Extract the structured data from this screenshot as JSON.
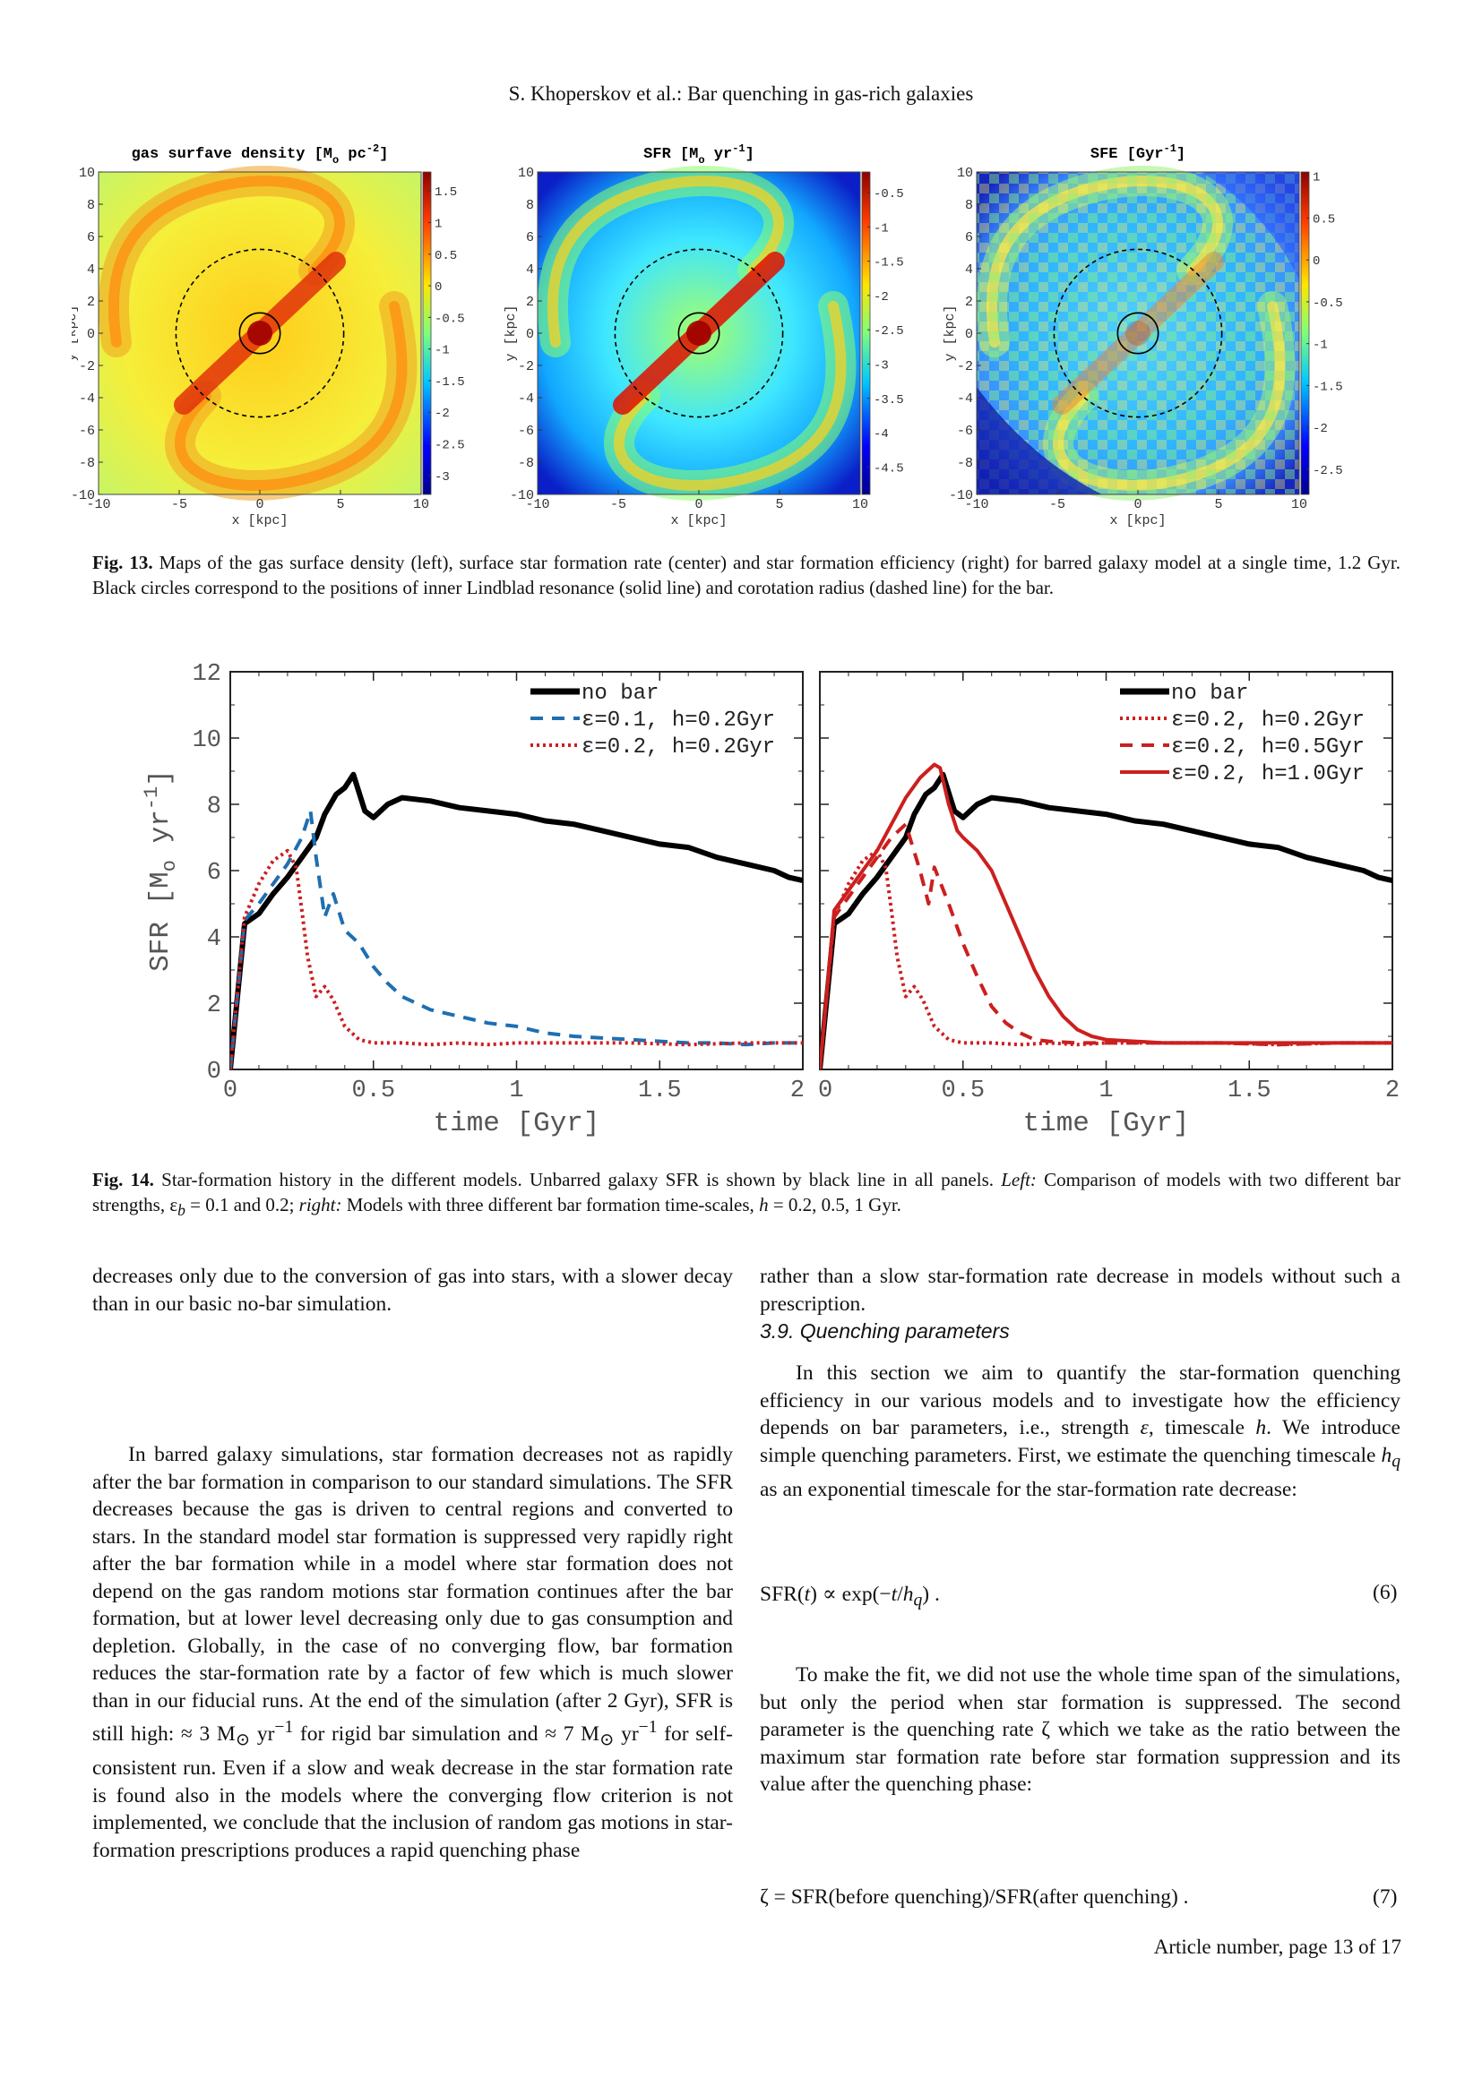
{
  "header": {
    "running_title": "S. Khoperskov et al.: Bar quenching in gas-rich galaxies"
  },
  "fig13": {
    "panels": [
      {
        "title": "gas surfave density [M",
        "title_sub": "o",
        "title_tail": " pc",
        "title_sup": "-2",
        "title_end": "]",
        "cbar_ticks": [
          "1.5",
          "1",
          "0.5",
          "0",
          "-0.5",
          "-1",
          "-1.5",
          "-2",
          "-2.5",
          "-3"
        ],
        "cbar_range": [
          -3.3,
          1.8
        ],
        "map": "gas"
      },
      {
        "title": "SFR [M",
        "title_sub": "o",
        "title_tail": " yr",
        "title_sup": "-1",
        "title_end": "]",
        "cbar_ticks": [
          "-0.5",
          "-1",
          "-1.5",
          "-2",
          "-2.5",
          "-3",
          "-3.5",
          "-4",
          "-4.5"
        ],
        "cbar_range": [
          -4.9,
          -0.2
        ],
        "map": "sfr"
      },
      {
        "title": "SFE [Gyr",
        "title_sub": "",
        "title_tail": "",
        "title_sup": "-1",
        "title_end": "]",
        "cbar_ticks": [
          "1",
          "0.5",
          "0",
          "-0.5",
          "-1",
          "-1.5",
          "-2",
          "-2.5"
        ],
        "cbar_range": [
          -2.8,
          1.05
        ],
        "map": "sfe"
      }
    ],
    "x_label": "x [kpc]",
    "y_label": "y [kpc]",
    "axis_ticks_x": [
      "-10",
      "-5",
      "0",
      "5",
      "10"
    ],
    "axis_ticks_y": [
      "10",
      "8",
      "6",
      "4",
      "2",
      "0",
      "-2",
      "-4",
      "-6",
      "-8",
      "-10"
    ],
    "ilr_radius_kpc": 0.9,
    "corotation_radius_kpc": 5.2,
    "caption_label": "Fig. 13.",
    "caption_text": " Maps of the gas surface density (left), surface star formation rate (center) and star formation efficiency (right) for barred galaxy model at a single time, 1.2 Gyr. Black circles correspond to the positions of inner Lindblad resonance (solid line) and corotation radius (dashed line) for the bar."
  },
  "chart_data": {
    "type": "line",
    "xlabel": "time [Gyr]",
    "ylabel": "SFR [M",
    "ylabel_sub": "o",
    "ylabel_tail": " yr",
    "ylabel_sup": "-1",
    "ylabel_end": "]",
    "xlim": [
      0,
      2
    ],
    "ylim": [
      0,
      12
    ],
    "x_ticks": [
      "0",
      "0.5",
      "1",
      "1.5",
      "2"
    ],
    "y_ticks": [
      "0",
      "2",
      "4",
      "6",
      "8",
      "10",
      "12"
    ],
    "panels": [
      {
        "legend_position": "top-right",
        "series": [
          {
            "name": "no bar",
            "color": "#000000",
            "style": "solid",
            "x": [
              0,
              0.05,
              0.1,
              0.15,
              0.2,
              0.25,
              0.3,
              0.33,
              0.37,
              0.4,
              0.43,
              0.47,
              0.5,
              0.55,
              0.6,
              0.7,
              0.8,
              0.9,
              1.0,
              1.1,
              1.2,
              1.3,
              1.4,
              1.5,
              1.6,
              1.7,
              1.8,
              1.9,
              1.95,
              2.0
            ],
            "y": [
              0,
              4.4,
              4.7,
              5.3,
              5.8,
              6.4,
              7.0,
              7.7,
              8.3,
              8.5,
              8.9,
              7.8,
              7.6,
              8.0,
              8.2,
              8.1,
              7.9,
              7.8,
              7.7,
              7.5,
              7.4,
              7.2,
              7.0,
              6.8,
              6.7,
              6.4,
              6.2,
              6.0,
              5.8,
              5.7
            ]
          },
          {
            "name": "ε=0.1, h=0.2Gyr",
            "color": "#1f6fb0",
            "style": "dashed",
            "x": [
              0,
              0.05,
              0.1,
              0.15,
              0.2,
              0.25,
              0.28,
              0.3,
              0.33,
              0.36,
              0.4,
              0.45,
              0.5,
              0.55,
              0.6,
              0.7,
              0.8,
              0.9,
              1.0,
              1.1,
              1.2,
              1.3,
              1.4,
              1.5,
              1.6,
              1.7,
              1.8,
              1.9,
              2.0
            ],
            "y": [
              0,
              4.5,
              5.0,
              5.6,
              6.2,
              7.0,
              7.8,
              6.4,
              4.6,
              5.3,
              4.2,
              3.8,
              3.1,
              2.6,
              2.2,
              1.8,
              1.6,
              1.4,
              1.3,
              1.1,
              1.0,
              0.95,
              0.9,
              0.85,
              0.8,
              0.8,
              0.75,
              0.8,
              0.8
            ]
          },
          {
            "name": "ε=0.2, h=0.2Gyr",
            "color": "#cc1f1f",
            "style": "dotted",
            "x": [
              0,
              0.05,
              0.1,
              0.15,
              0.2,
              0.23,
              0.25,
              0.27,
              0.3,
              0.33,
              0.36,
              0.4,
              0.45,
              0.5,
              0.6,
              0.7,
              0.8,
              0.9,
              1.0,
              1.2,
              1.4,
              1.6,
              1.8,
              2.0
            ],
            "y": [
              0,
              4.6,
              5.6,
              6.3,
              6.6,
              6.1,
              4.8,
              3.4,
              2.2,
              2.5,
              2.1,
              1.3,
              0.9,
              0.8,
              0.8,
              0.75,
              0.8,
              0.75,
              0.8,
              0.8,
              0.8,
              0.75,
              0.8,
              0.8
            ]
          }
        ]
      },
      {
        "legend_position": "top-right",
        "series": [
          {
            "name": "no bar",
            "color": "#000000",
            "style": "solid",
            "x": [
              0,
              0.05,
              0.1,
              0.15,
              0.2,
              0.25,
              0.3,
              0.33,
              0.37,
              0.4,
              0.43,
              0.47,
              0.5,
              0.55,
              0.6,
              0.7,
              0.8,
              0.9,
              1.0,
              1.1,
              1.2,
              1.3,
              1.4,
              1.5,
              1.6,
              1.7,
              1.8,
              1.9,
              1.95,
              2.0
            ],
            "y": [
              0,
              4.4,
              4.7,
              5.3,
              5.8,
              6.4,
              7.0,
              7.7,
              8.3,
              8.5,
              8.9,
              7.8,
              7.6,
              8.0,
              8.2,
              8.1,
              7.9,
              7.8,
              7.7,
              7.5,
              7.4,
              7.2,
              7.0,
              6.8,
              6.7,
              6.4,
              6.2,
              6.0,
              5.8,
              5.7
            ]
          },
          {
            "name": "ε=0.2, h=0.2Gyr",
            "color": "#cc1f1f",
            "style": "dotted",
            "x": [
              0,
              0.05,
              0.1,
              0.15,
              0.2,
              0.23,
              0.25,
              0.27,
              0.3,
              0.33,
              0.36,
              0.4,
              0.45,
              0.5,
              0.6,
              0.7,
              0.8,
              0.9,
              1.0,
              1.2,
              1.4,
              1.6,
              1.8,
              2.0
            ],
            "y": [
              0,
              4.6,
              5.6,
              6.3,
              6.6,
              6.1,
              4.8,
              3.4,
              2.2,
              2.5,
              2.1,
              1.3,
              0.9,
              0.8,
              0.8,
              0.75,
              0.8,
              0.75,
              0.8,
              0.8,
              0.8,
              0.75,
              0.8,
              0.8
            ]
          },
          {
            "name": "ε=0.2, h=0.5Gyr",
            "color": "#cc1f1f",
            "style": "dashed",
            "x": [
              0,
              0.05,
              0.1,
              0.15,
              0.2,
              0.25,
              0.3,
              0.35,
              0.38,
              0.4,
              0.45,
              0.5,
              0.55,
              0.6,
              0.65,
              0.7,
              0.75,
              0.8,
              0.9,
              1.0,
              1.2,
              1.4,
              1.6,
              1.8,
              2.0
            ],
            "y": [
              0,
              4.6,
              5.2,
              5.8,
              6.4,
              7.0,
              7.4,
              6.0,
              5.0,
              6.1,
              5.0,
              3.8,
              2.8,
              1.9,
              1.4,
              1.1,
              0.9,
              0.85,
              0.8,
              0.8,
              0.8,
              0.8,
              0.75,
              0.8,
              0.8
            ]
          },
          {
            "name": "ε=0.2, h=1.0Gyr",
            "color": "#cc1f1f",
            "style": "solid",
            "x": [
              0,
              0.05,
              0.1,
              0.15,
              0.2,
              0.25,
              0.3,
              0.35,
              0.4,
              0.42,
              0.45,
              0.48,
              0.5,
              0.55,
              0.6,
              0.65,
              0.7,
              0.75,
              0.8,
              0.85,
              0.9,
              0.95,
              1.0,
              1.1,
              1.2,
              1.4,
              1.6,
              1.8,
              2.0
            ],
            "y": [
              0,
              4.8,
              5.4,
              6.0,
              6.6,
              7.4,
              8.2,
              8.8,
              9.2,
              9.1,
              8.0,
              7.2,
              7.0,
              6.6,
              6.0,
              5.0,
              4.0,
              3.0,
              2.2,
              1.6,
              1.2,
              1.0,
              0.9,
              0.85,
              0.8,
              0.8,
              0.8,
              0.8,
              0.8
            ]
          }
        ]
      }
    ]
  },
  "fig14": {
    "caption_label": "Fig. 14.",
    "caption_text": " Star-formation history in the different models. Unbarred galaxy SFR is shown by black line in all panels. ",
    "caption_left": "Left:",
    "caption_text2": " Comparison of models with two different bar strengths, ε",
    "caption_sub_b": "b",
    "caption_text3": " = 0.1 and 0.2; ",
    "caption_right": "right:",
    "caption_text4": " Models with three different bar formation time-scales, ",
    "caption_h": "h",
    "caption_text5": " = 0.2, 0.5, 1 Gyr."
  },
  "body": {
    "left_p1": "decreases only due to the conversion of gas into stars, with a slower decay than in our basic no-bar simulation.",
    "left_p2a": "In barred galaxy simulations, star formation decreases not as rapidly after the bar formation in comparison to our standard simulations. The SFR decreases because the gas is driven to central regions and converted to stars. In the standard model star formation is suppressed very rapidly right after the bar formation while in a model where star formation does not depend on the gas random motions star formation continues after the bar formation, but at lower level decreasing only due to gas consumption and depletion. Globally, in the case of no converging flow, bar formation reduces the star-formation rate by a factor of few which is much slower than in our fiducial runs. At the end of the simulation (after 2 Gyr), SFR is still high: ≈ 3 M",
    "left_p2b": " yr",
    "left_p2c": " for rigid bar simulation and ≈ 7 M",
    "left_p2d": " yr",
    "left_p2e": " for self-consistent run. Even if a slow and weak decrease in the star formation rate is found also in the models where the converging flow criterion is not implemented, we conclude that the inclusion of random gas motions in star-formation prescriptions produces a rapid quenching phase",
    "sun_sub": "⊙",
    "minus_one": "−1",
    "right_p1": "rather than a slow star-formation rate decrease in models without such a prescription.",
    "section_title": "3.9. Quenching parameters",
    "right_p2a": "In this section we aim to quantify the star-formation quenching efficiency in our various models and to investigate how the efficiency depends on bar parameters, i.e., strength ",
    "right_p2_eps": "ε",
    "right_p2b": ", timescale ",
    "right_p2_h": "h",
    "right_p2c": ". We introduce simple quenching parameters. First, we estimate the quenching timescale ",
    "right_p2_hq": "h",
    "right_p2_q": "q",
    "right_p2d": " as an exponential timescale for the star-formation rate decrease:",
    "eq6_lhs": "SFR(",
    "eq6_t": "t",
    "eq6_mid": ") ∝ exp(−",
    "eq6_t2": "t",
    "eq6_slash": "/",
    "eq6_h": "h",
    "eq6_q": "q",
    "eq6_end": ") .",
    "eq6_num": "(6)",
    "right_p3": "To make the fit, we did not use the whole time span of the simulations, but only the period when star formation is suppressed. The second parameter is the quenching rate ζ which we take as the ratio between the maximum star formation rate before star formation suppression and its value after the quenching phase:",
    "eq7": "ζ = SFR(before quenching)/SFR(after quenching) .",
    "eq7_num": "(7)"
  },
  "footer": {
    "page": "Article number, page 13 of 17"
  },
  "colors": {
    "accent_red": "#cc1f1f",
    "accent_blue": "#1f6fb0",
    "black": "#000000"
  }
}
